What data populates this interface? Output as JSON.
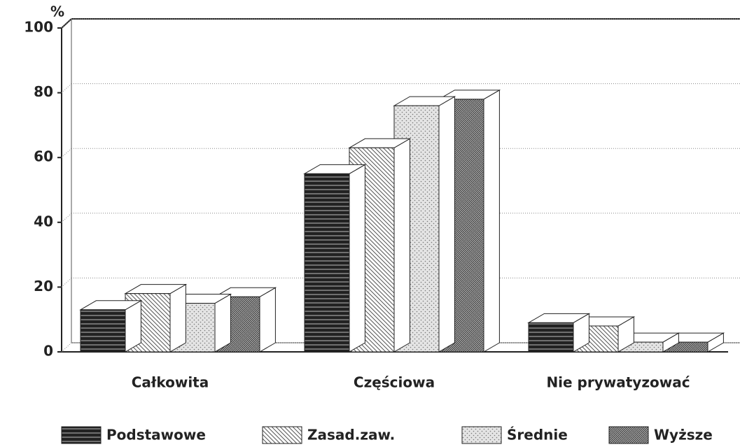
{
  "chart_data": {
    "type": "bar3d",
    "y_label": "%",
    "categories": [
      "Całkowita",
      "Częściowa",
      "Nie prywatyzować"
    ],
    "series": [
      {
        "name": "Podstawowe",
        "color": "#222222",
        "values": [
          13,
          55,
          9
        ]
      },
      {
        "name": "Zasad.zaw.",
        "color": "#555555",
        "values": [
          18,
          63,
          8
        ]
      },
      {
        "name": "Średnie",
        "color": "#777777",
        "values": [
          15,
          76,
          3
        ]
      },
      {
        "name": "Wyższe",
        "color": "#333333",
        "values": [
          17,
          78,
          3
        ]
      }
    ],
    "ylim": [
      0,
      100
    ],
    "yticks": [
      0,
      20,
      40,
      60,
      80,
      100
    ],
    "grid": true,
    "legend": "bottom"
  }
}
